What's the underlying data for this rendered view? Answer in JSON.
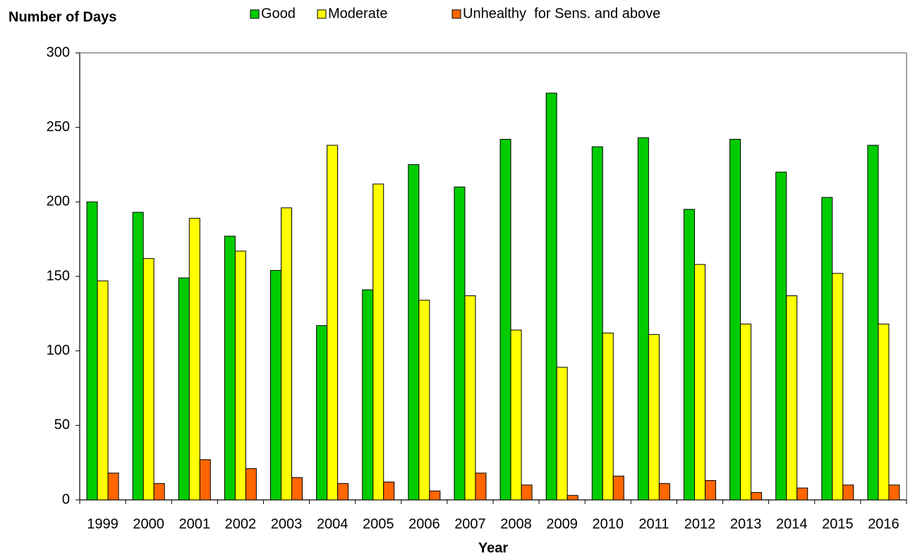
{
  "chart_data": {
    "type": "bar",
    "y_label": "Number of Days",
    "x_label": "Year",
    "categories": [
      "1999",
      "2000",
      "2001",
      "2002",
      "2003",
      "2004",
      "2005",
      "2006",
      "2007",
      "2008",
      "2009",
      "2010",
      "2011",
      "2012",
      "2013",
      "2014",
      "2015",
      "2016"
    ],
    "series": [
      {
        "name": "Good",
        "color": "#00cc00",
        "values": [
          200,
          193,
          149,
          177,
          154,
          117,
          141,
          225,
          210,
          242,
          273,
          237,
          243,
          195,
          242,
          220,
          203,
          238
        ]
      },
      {
        "name": "Moderate",
        "color": "#ffff00",
        "values": [
          147,
          162,
          189,
          167,
          196,
          238,
          212,
          134,
          137,
          114,
          89,
          112,
          111,
          158,
          118,
          137,
          152,
          118
        ]
      },
      {
        "name": "Unhealthy  for Sens. and above",
        "color": "#ff6600",
        "values": [
          18,
          11,
          27,
          21,
          15,
          11,
          12,
          6,
          18,
          10,
          3,
          16,
          11,
          13,
          5,
          8,
          10,
          10
        ]
      }
    ],
    "ylim": [
      0,
      300
    ],
    "yticks": [
      0,
      50,
      100,
      150,
      200,
      250,
      300
    ],
    "legend": "top"
  }
}
